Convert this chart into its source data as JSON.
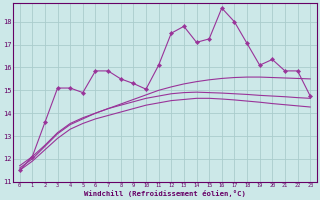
{
  "background_color": "#cce8e8",
  "grid_color": "#aacccc",
  "line_color": "#993399",
  "marker_color": "#993399",
  "xlabel": "Windchill (Refroidissement éolien,°C)",
  "ylabel_vals": [
    11,
    12,
    13,
    14,
    15,
    16,
    17,
    18
  ],
  "xlim": [
    -0.5,
    23.5
  ],
  "ylim": [
    11,
    18.8
  ],
  "xtick_labels": [
    "0",
    "1",
    "2",
    "3",
    "4",
    "5",
    "6",
    "7",
    "8",
    "9",
    "10",
    "11",
    "12",
    "13",
    "14",
    "15",
    "16",
    "17",
    "18",
    "19",
    "20",
    "21",
    "22",
    "23"
  ],
  "main_line_x": [
    0,
    1,
    2,
    3,
    4,
    5,
    6,
    7,
    8,
    9,
    10,
    11,
    12,
    13,
    14,
    15,
    16,
    17,
    18,
    19,
    20,
    21,
    22,
    23
  ],
  "main_line_y": [
    11.5,
    12.1,
    13.6,
    15.1,
    15.1,
    14.9,
    15.85,
    15.85,
    15.5,
    15.3,
    15.05,
    16.1,
    17.5,
    17.8,
    17.1,
    17.25,
    18.6,
    18.0,
    17.05,
    16.1,
    16.35,
    15.85,
    15.85,
    14.75
  ],
  "smooth_line1_x": [
    0,
    1,
    2,
    3,
    4,
    5,
    6,
    7,
    8,
    9,
    10,
    11,
    12,
    13,
    14,
    15,
    16,
    17,
    18,
    19,
    20,
    21,
    22,
    23
  ],
  "smooth_line1_y": [
    11.5,
    11.9,
    12.4,
    12.9,
    13.3,
    13.55,
    13.75,
    13.9,
    14.05,
    14.2,
    14.35,
    14.45,
    14.55,
    14.6,
    14.65,
    14.65,
    14.62,
    14.58,
    14.53,
    14.48,
    14.42,
    14.37,
    14.32,
    14.27
  ],
  "smooth_line2_x": [
    0,
    1,
    2,
    3,
    4,
    5,
    6,
    7,
    8,
    9,
    10,
    11,
    12,
    13,
    14,
    15,
    16,
    17,
    18,
    19,
    20,
    21,
    22,
    23
  ],
  "smooth_line2_y": [
    11.7,
    12.1,
    12.6,
    13.15,
    13.55,
    13.8,
    14.0,
    14.2,
    14.35,
    14.5,
    14.65,
    14.75,
    14.85,
    14.9,
    14.92,
    14.9,
    14.88,
    14.85,
    14.82,
    14.78,
    14.75,
    14.72,
    14.68,
    14.65
  ],
  "smooth_line3_x": [
    0,
    1,
    2,
    3,
    4,
    5,
    6,
    7,
    8,
    9,
    10,
    11,
    12,
    13,
    14,
    15,
    16,
    17,
    18,
    19,
    20,
    21,
    22,
    23
  ],
  "smooth_line3_y": [
    11.6,
    12.0,
    12.55,
    13.1,
    13.5,
    13.75,
    14.0,
    14.2,
    14.4,
    14.6,
    14.8,
    15.0,
    15.15,
    15.28,
    15.38,
    15.46,
    15.52,
    15.56,
    15.58,
    15.58,
    15.56,
    15.54,
    15.52,
    15.5
  ]
}
